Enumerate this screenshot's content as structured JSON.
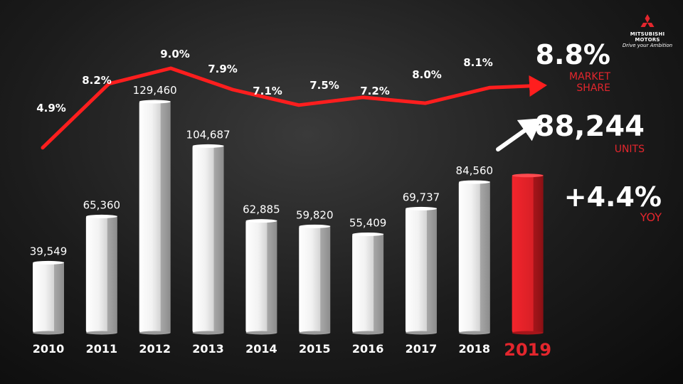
{
  "brand": {
    "name_line1": "MITSUBISHI",
    "name_line2": "MOTORS",
    "tagline": "Drive your Ambition"
  },
  "colors": {
    "accent": "#e3262d",
    "bar_highlight": "#e3262d",
    "bar_default": "#ffffff",
    "text": "#ffffff"
  },
  "chart_data": {
    "type": "bar",
    "categories": [
      "2010",
      "2011",
      "2012",
      "2013",
      "2014",
      "2015",
      "2016",
      "2017",
      "2018",
      "2019"
    ],
    "series": [
      {
        "values": [
          39549,
          65360,
          129460,
          104687,
          62885,
          59820,
          55409,
          69737,
          84560,
          88244
        ],
        "value_labels": [
          "39,549",
          "65,360",
          "129,460",
          "104,687",
          "62,885",
          "59,820",
          "55,409",
          "69,737",
          "84,560",
          ""
        ]
      },
      {
        "type": "line",
        "values": [
          4.9,
          8.2,
          9.0,
          7.9,
          7.1,
          7.5,
          7.2,
          8.0,
          8.1,
          8.8
        ],
        "value_labels": [
          "4.9%",
          "8.2%",
          "9.0%",
          "7.9%",
          "7.1%",
          "7.5%",
          "7.2%",
          "8.0%",
          "8.1%",
          ""
        ]
      }
    ],
    "highlight_category": "2019",
    "legend": "none",
    "grid": false,
    "title": "",
    "xlabel": "",
    "ylabel": ""
  },
  "highlights": {
    "market_share": {
      "value": "8.8%",
      "label_line1": "MARKET",
      "label_line2": "SHARE"
    },
    "units": {
      "value": "88,244",
      "label": "UNITS"
    },
    "yoy": {
      "value": "+4.4%",
      "label": "YOY"
    }
  }
}
